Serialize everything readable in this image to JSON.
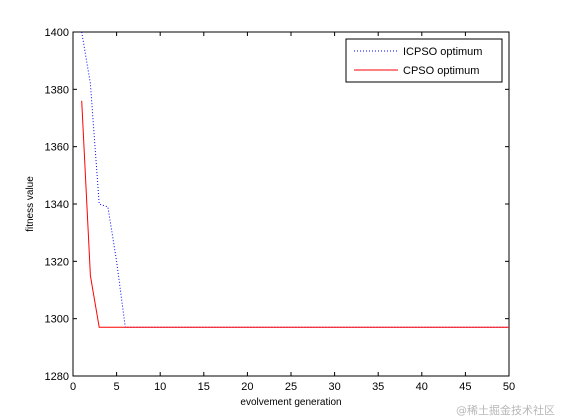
{
  "chart_data": {
    "type": "line",
    "title": "",
    "xlabel": "evolvement generation",
    "ylabel": "fitness value",
    "xlim": [
      0,
      50
    ],
    "ylim": [
      1280,
      1400
    ],
    "x_ticks": [
      0,
      5,
      10,
      15,
      20,
      25,
      30,
      35,
      40,
      45,
      50
    ],
    "y_ticks": [
      1280,
      1300,
      1320,
      1340,
      1360,
      1380,
      1400
    ],
    "grid": false,
    "legend_position": "top-right",
    "series": [
      {
        "name": "ICPSO optimum",
        "color": "#0000ff",
        "style": "dotted",
        "x": [
          1,
          2,
          3,
          4,
          5,
          6,
          7,
          8,
          9,
          10,
          11,
          12,
          13,
          14,
          15,
          16,
          17,
          18,
          19,
          20,
          21,
          22,
          23,
          24,
          25,
          26,
          27,
          28,
          29,
          30,
          31,
          32,
          33,
          34,
          35,
          36,
          37,
          38,
          39,
          40,
          41,
          42,
          43,
          44,
          45,
          46,
          47,
          48,
          49,
          50
        ],
        "y": [
          1400,
          1382,
          1340,
          1339,
          1320,
          1297,
          1297,
          1297,
          1297,
          1297,
          1297,
          1297,
          1297,
          1297,
          1297,
          1297,
          1297,
          1297,
          1297,
          1297,
          1297,
          1297,
          1297,
          1297,
          1297,
          1297,
          1297,
          1297,
          1297,
          1297,
          1297,
          1297,
          1297,
          1297,
          1297,
          1297,
          1297,
          1297,
          1297,
          1297,
          1297,
          1297,
          1297,
          1297,
          1297,
          1297,
          1297,
          1297,
          1297,
          1297
        ]
      },
      {
        "name": "CPSO optimum",
        "color": "#ff0000",
        "style": "solid",
        "x": [
          1,
          2,
          3,
          4,
          5,
          6,
          7,
          8,
          9,
          10,
          11,
          12,
          13,
          14,
          15,
          16,
          17,
          18,
          19,
          20,
          21,
          22,
          23,
          24,
          25,
          26,
          27,
          28,
          29,
          30,
          31,
          32,
          33,
          34,
          35,
          36,
          37,
          38,
          39,
          40,
          41,
          42,
          43,
          44,
          45,
          46,
          47,
          48,
          49,
          50
        ],
        "y": [
          1376,
          1315,
          1297,
          1297,
          1297,
          1297,
          1297,
          1297,
          1297,
          1297,
          1297,
          1297,
          1297,
          1297,
          1297,
          1297,
          1297,
          1297,
          1297,
          1297,
          1297,
          1297,
          1297,
          1297,
          1297,
          1297,
          1297,
          1297,
          1297,
          1297,
          1297,
          1297,
          1297,
          1297,
          1297,
          1297,
          1297,
          1297,
          1297,
          1297,
          1297,
          1297,
          1297,
          1297,
          1297,
          1297,
          1297,
          1297,
          1297,
          1297
        ]
      }
    ]
  },
  "watermark": "@稀土掘金技术社区"
}
